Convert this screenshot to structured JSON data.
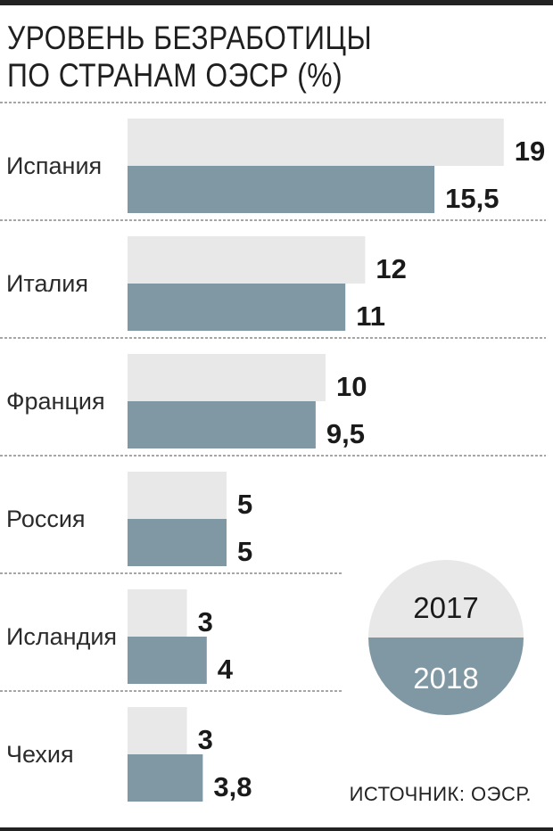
{
  "title_lines": [
    "УРОВЕНЬ БЕЗРАБОТИЦЫ",
    "ПО СТРАНАМ ОЭСР (%)"
  ],
  "source": "ИСТОЧНИК: ОЭСР.",
  "colors": {
    "series_2017": "#e8e8e8",
    "series_2018": "#7f98a3",
    "divider": "#888888",
    "legend_text_2017": "#1a1a1a",
    "legend_text_2018": "#ffffff"
  },
  "chart_data": {
    "type": "bar",
    "orientation": "horizontal",
    "title": "УРОВЕНЬ БЕЗРАБОТИЦЫ ПО СТРАНАМ ОЭСР (%)",
    "categories": [
      "Испания",
      "Италия",
      "Франция",
      "Россия",
      "Исландия",
      "Чехия"
    ],
    "series": [
      {
        "name": "2017",
        "values": [
          19,
          12,
          10,
          5,
          3,
          3
        ],
        "labels": [
          "19",
          "12",
          "10",
          "5",
          "3",
          "3"
        ]
      },
      {
        "name": "2018",
        "values": [
          15.5,
          11,
          9.5,
          5,
          4,
          3.8
        ],
        "labels": [
          "15,5",
          "11",
          "9,5",
          "5",
          "4",
          "3,8"
        ]
      }
    ],
    "legend": {
      "placement": "right, circular, upper half 2017, lower half 2018",
      "entries": [
        "2017",
        "2018"
      ]
    },
    "grid": false
  }
}
